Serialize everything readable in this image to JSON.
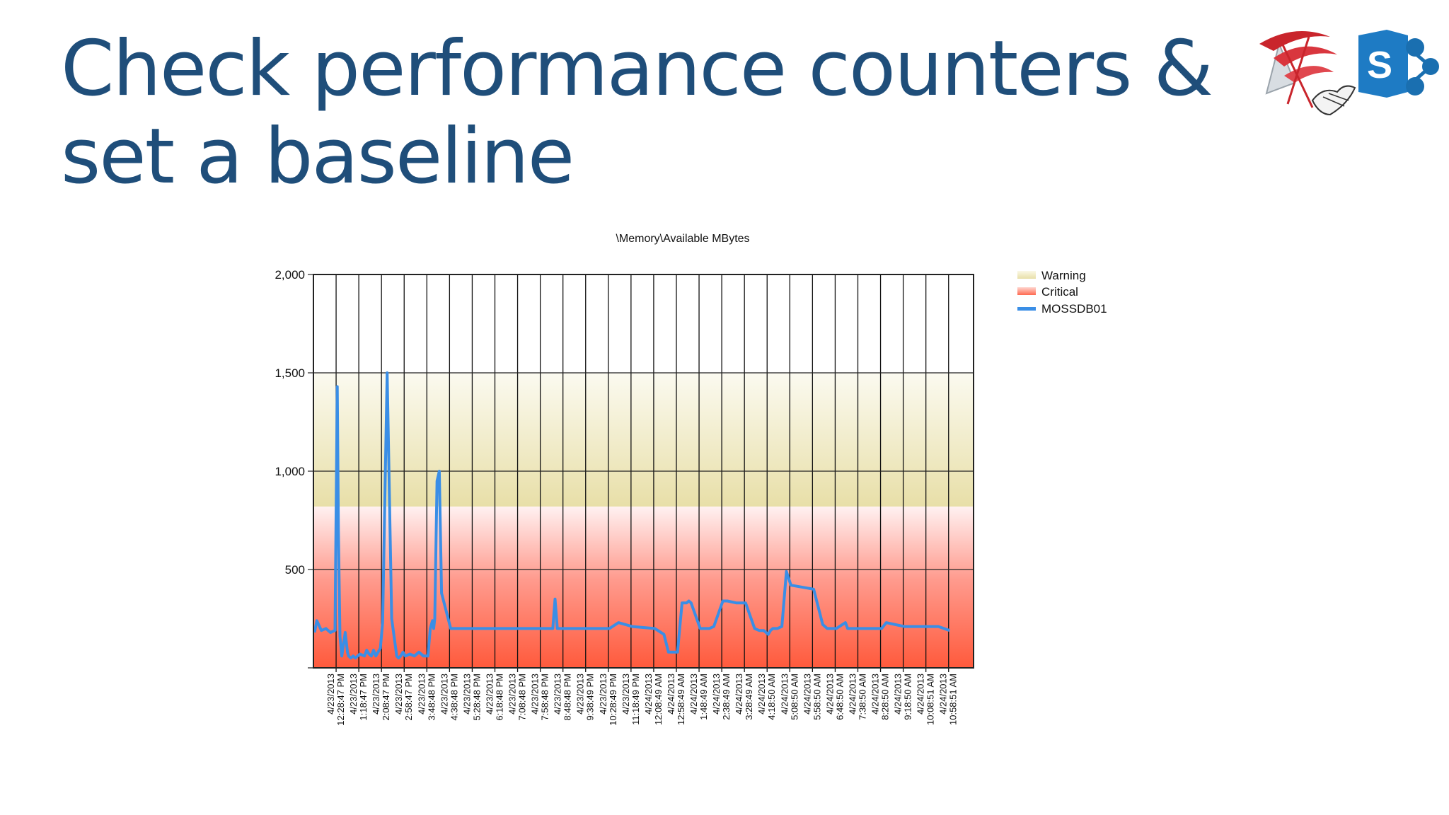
{
  "slide": {
    "title": "Check performance counters & set a baseline"
  },
  "chart_data": {
    "type": "line",
    "title": "\\Memory\\Available MBytes",
    "xlabel": "",
    "ylabel": "",
    "ylim": [
      0,
      2000
    ],
    "yticks": [
      {
        "value": 500,
        "label": "500"
      },
      {
        "value": 1000,
        "label": "1,000"
      },
      {
        "value": 1500,
        "label": "1,500"
      },
      {
        "value": 2000,
        "label": "2,000"
      }
    ],
    "grid": true,
    "legend_position": "top-right",
    "bands": [
      {
        "name": "Warning",
        "from": 820,
        "to": 1500,
        "color": "#ede6b4"
      },
      {
        "name": "Critical",
        "from": 0,
        "to": 820,
        "color": "#ff5a3c"
      }
    ],
    "x_tick_labels": [
      "4/23/2013 12:28:47 PM",
      "4/23/2013 1:18:47 PM",
      "4/23/2013 2:08:47 PM",
      "4/23/2013 2:58:47 PM",
      "4/23/2013 3:48:48 PM",
      "4/23/2013 4:38:48 PM",
      "4/23/2013 5:28:48 PM",
      "4/23/2013 6:18:48 PM",
      "4/23/2013 7:08:48 PM",
      "4/23/2013 7:58:48 PM",
      "4/23/2013 8:48:48 PM",
      "4/23/2013 9:38:49 PM",
      "4/23/2013 10:28:49 PM",
      "4/23/2013 11:18:49 PM",
      "4/24/2013 12:08:49 AM",
      "4/24/2013 12:58:49 AM",
      "4/24/2013 1:48:49 AM",
      "4/24/2013 2:38:49 AM",
      "4/24/2013 3:28:49 AM",
      "4/24/2013 4:18:50 AM",
      "4/24/2013 5:08:50 AM",
      "4/24/2013 5:58:50 AM",
      "4/24/2013 6:48:50 AM",
      "4/24/2013 7:38:50 AM",
      "4/24/2013 8:28:50 AM",
      "4/24/2013 9:18:50 AM",
      "4/24/2013 10:08:51 AM",
      "4/24/2013 10:58:51 AM"
    ],
    "series": [
      {
        "name": "MOSSDB01",
        "color": "#3a8ee6",
        "x": [
          0,
          0.1,
          0.3,
          0.5,
          0.7,
          0.9,
          1.0,
          1.05,
          1.12,
          1.2,
          1.35,
          1.45,
          1.5,
          1.6,
          1.7,
          1.8,
          2.0,
          2.2,
          2.3,
          2.4,
          2.5,
          2.6,
          2.7,
          2.8,
          2.9,
          3.0,
          3.2,
          3.4,
          3.6,
          3.62,
          3.7,
          3.8,
          3.9,
          4.0,
          4.2,
          4.4,
          4.6,
          4.8,
          5.0,
          5.1,
          5.2,
          5.25,
          5.3,
          5.4,
          5.5,
          5.6,
          6.0,
          7.0,
          8.0,
          9.0,
          10.0,
          10.5,
          10.6,
          10.7,
          11.0,
          12.0,
          13.0,
          13.4,
          14.0,
          15.0,
          15.4,
          15.6,
          16.0,
          16.2,
          16.4,
          16.5,
          16.6,
          17.0,
          17.2,
          17.4,
          17.6,
          18.0,
          18.2,
          18.6,
          19.0,
          19.4,
          19.6,
          19.8,
          20.0,
          20.1,
          20.2,
          20.4,
          20.6,
          20.8,
          21.0,
          22.0,
          22.4,
          22.6,
          23.0,
          23.4,
          23.5,
          24.0,
          25.0,
          25.2,
          26.0,
          27.0,
          27.5,
          28.0
        ],
        "values": [
          180,
          240,
          190,
          200,
          180,
          190,
          1430,
          700,
          160,
          60,
          180,
          80,
          60,
          50,
          60,
          50,
          70,
          60,
          90,
          70,
          60,
          90,
          60,
          80,
          100,
          230,
          1500,
          250,
          80,
          60,
          50,
          60,
          80,
          60,
          70,
          60,
          80,
          60,
          60,
          200,
          240,
          200,
          250,
          950,
          1000,
          380,
          200,
          200,
          200,
          200,
          200,
          200,
          350,
          200,
          200,
          200,
          200,
          230,
          210,
          200,
          170,
          80,
          80,
          330,
          330,
          340,
          330,
          200,
          200,
          200,
          210,
          340,
          340,
          330,
          330,
          200,
          190,
          190,
          170,
          190,
          200,
          200,
          210,
          490,
          420,
          400,
          220,
          200,
          200,
          230,
          200,
          200,
          200,
          230,
          210,
          210,
          210,
          190
        ]
      }
    ]
  }
}
